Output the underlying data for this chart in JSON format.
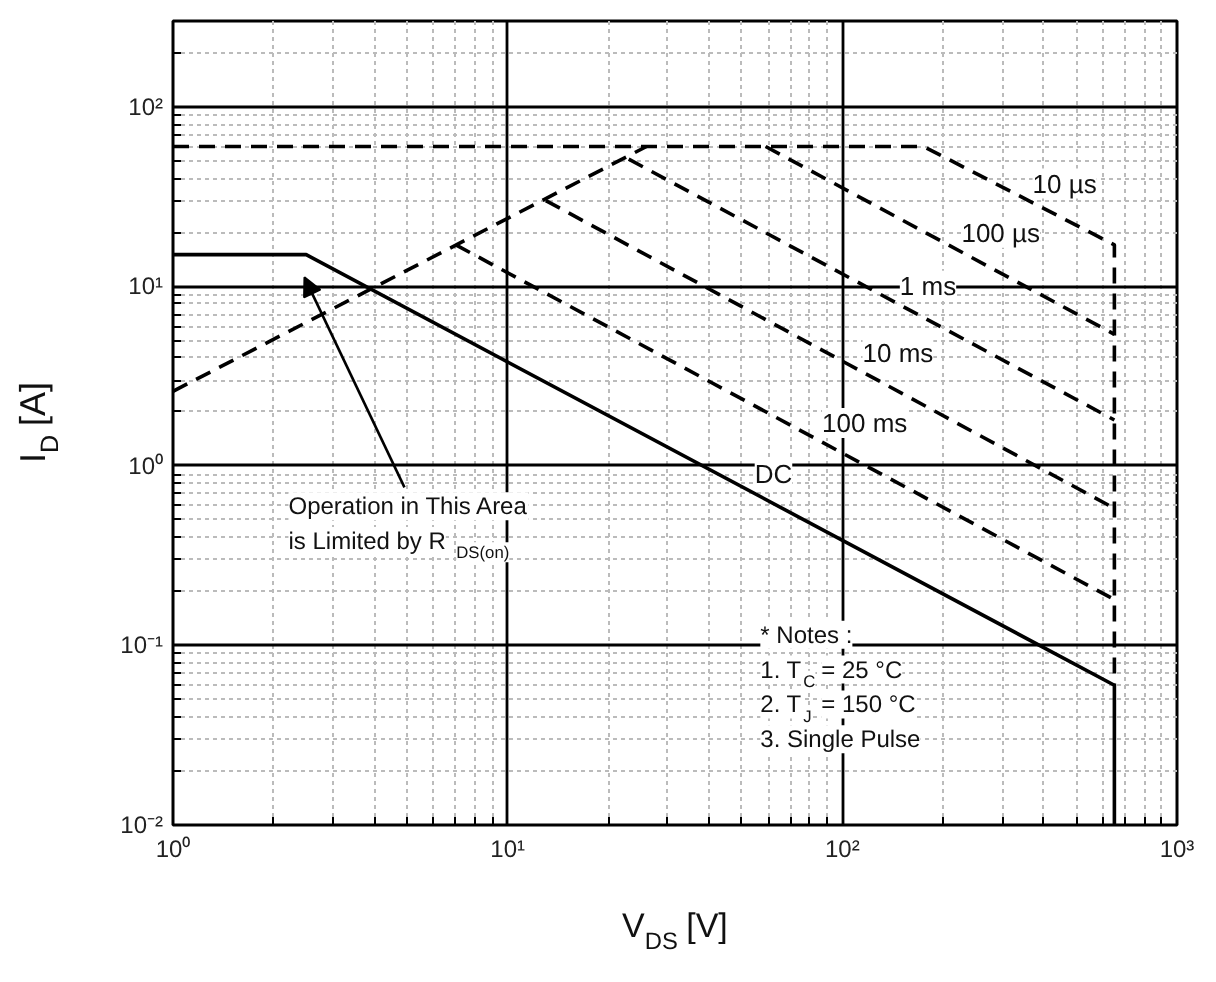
{
  "chart_data": {
    "type": "line",
    "xlabel": "V$_{DS}$ [V]",
    "ylabel": "I$_{D}$ [A]",
    "log": "xy",
    "grid": true,
    "xlim": [
      1,
      1000
    ],
    "ylim": [
      0.01,
      300
    ],
    "xticks": [
      {
        "value": 1,
        "label": "10⁰"
      },
      {
        "value": 10,
        "label": "10¹"
      },
      {
        "value": 100,
        "label": "10²"
      },
      {
        "value": 1000,
        "label": "10³"
      }
    ],
    "yticks": [
      {
        "value": 0.01,
        "label": "10⁻²"
      },
      {
        "value": 0.1,
        "label": "10⁻¹"
      },
      {
        "value": 1,
        "label": "10⁰"
      },
      {
        "value": 10,
        "label": "10¹"
      },
      {
        "value": 100,
        "label": "10²"
      }
    ],
    "series": [
      {
        "color": "#000000",
        "line_style": "dashed",
        "x": [
          1,
          26
        ],
        "values": [
          2.6,
          60
        ]
      },
      {
        "name": "10 µs",
        "color": "#000000",
        "line_style": "dashed",
        "x": [
          1,
          175,
          650,
          650
        ],
        "values": [
          60,
          60,
          17,
          0.06
        ]
      },
      {
        "name": "100 µs",
        "color": "#000000",
        "line_style": "dashed",
        "x": [
          59,
          650
        ],
        "values": [
          60,
          5.4
        ]
      },
      {
        "name": "1 ms",
        "color": "#000000",
        "line_style": "dashed",
        "x": [
          23,
          650
        ],
        "values": [
          51,
          1.8
        ]
      },
      {
        "name": "10 ms",
        "color": "#000000",
        "line_style": "dashed",
        "x": [
          13,
          650
        ],
        "values": [
          30,
          0.58
        ]
      },
      {
        "name": "100 ms",
        "color": "#000000",
        "line_style": "dashed",
        "x": [
          7,
          650
        ],
        "values": [
          17,
          0.18
        ]
      },
      {
        "name": "DC",
        "color": "#000000",
        "line_style": "solid",
        "x": [
          1,
          2.5,
          650,
          650
        ],
        "values": [
          15,
          15,
          0.06,
          0.01
        ]
      }
    ],
    "annotations": [
      "Operation in This Area\nis Limited by R$_{DS(on)}$",
      "* Notes :\n1. T$_{C}$ = 25 °C\n2. T$_{J}$ = 150 °C\n3. Single Pulse"
    ]
  }
}
